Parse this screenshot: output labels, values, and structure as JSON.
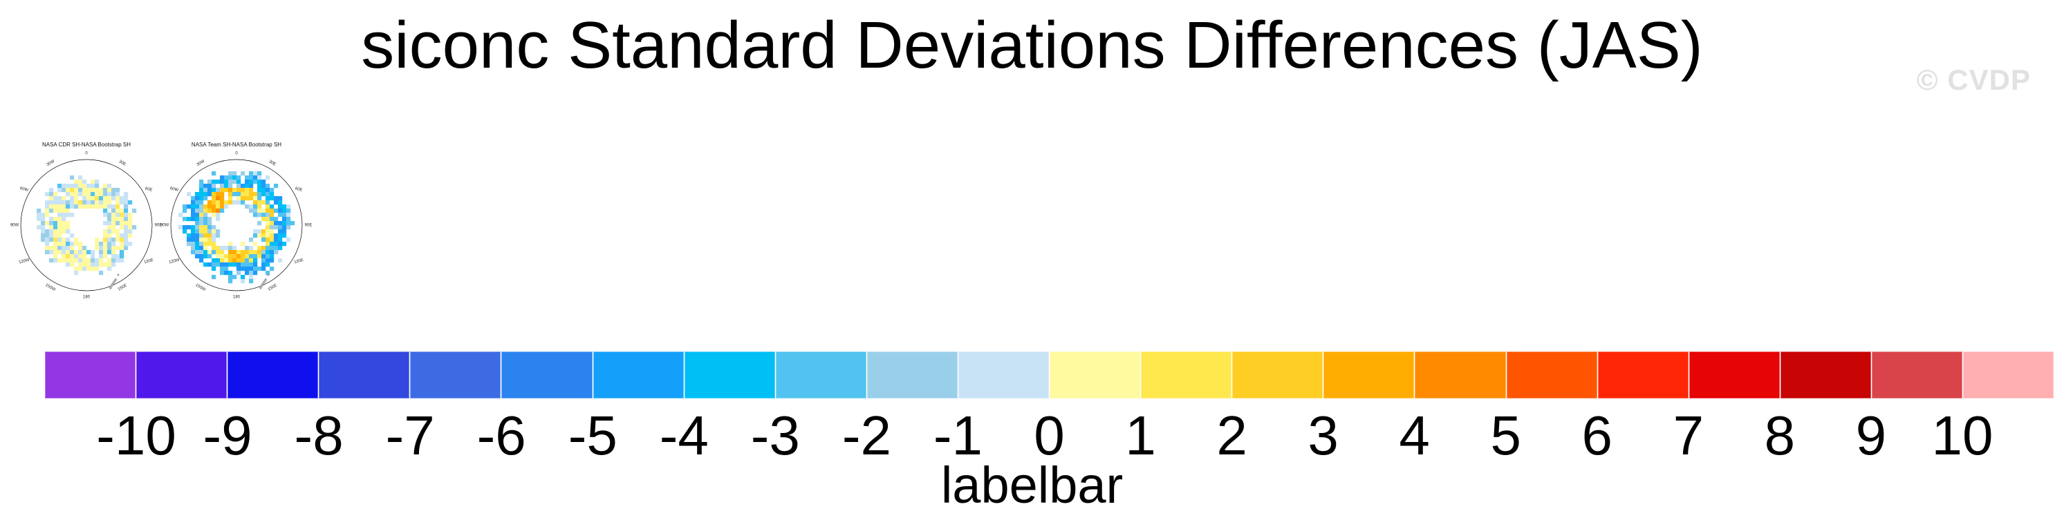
{
  "page_title": "siconc Standard Deviations Differences (JAS)",
  "watermark": "© CVDP",
  "maps": [
    {
      "title": "NASA CDR SH-NASA Bootstrap SH",
      "lon_labels": [
        {
          "text": "0",
          "angle": 0,
          "tilt": 0
        },
        {
          "text": "30E",
          "angle": 30,
          "tilt": 30
        },
        {
          "text": "60E",
          "angle": 60,
          "tilt": 15
        },
        {
          "text": "90E",
          "angle": 90,
          "tilt": 0
        },
        {
          "text": "120E",
          "angle": 120,
          "tilt": -15
        },
        {
          "text": "150E",
          "angle": 150,
          "tilt": -30
        },
        {
          "text": "180",
          "angle": 180,
          "tilt": 0
        },
        {
          "text": "150W",
          "angle": 210,
          "tilt": 30
        },
        {
          "text": "120W",
          "angle": 240,
          "tilt": -15
        },
        {
          "text": "90W",
          "angle": 270,
          "tilt": 0
        },
        {
          "text": "60W",
          "angle": 300,
          "tilt": 15
        },
        {
          "text": "30W",
          "angle": 330,
          "tilt": -30
        }
      ],
      "ring": {
        "seed": 7,
        "cell": 6,
        "bands": [
          {
            "r0": 30,
            "r1": 66,
            "p": 0.9,
            "colors": [
              [
                "#FFF9A0",
                0.5
              ],
              [
                "#C9E3F6",
                0.28
              ],
              [
                "#9ACFEA",
                0.14
              ],
              [
                "#52C3F0",
                0.05
              ],
              [
                "#FFE74E",
                0.03
              ]
            ]
          },
          {
            "r0": 66,
            "r1": 74,
            "p": 0.35,
            "colors": [
              [
                "#C9E3F6",
                0.55
              ],
              [
                "#9ACFEA",
                0.35
              ],
              [
                "#52C3F0",
                0.1
              ]
            ]
          },
          {
            "r0": 24,
            "r1": 30,
            "p": 0.55,
            "colors": [
              [
                "#FFF9A0",
                0.65
              ],
              [
                "#C9E3F6",
                0.35
              ]
            ]
          }
        ]
      }
    },
    {
      "title": "NASA Team SH-NASA Bootstrap SH",
      "lon_labels": [
        {
          "text": "0",
          "angle": 0,
          "tilt": 0
        },
        {
          "text": "30E",
          "angle": 30,
          "tilt": 30
        },
        {
          "text": "60E",
          "angle": 60,
          "tilt": 15
        },
        {
          "text": "90E",
          "angle": 90,
          "tilt": 0
        },
        {
          "text": "120E",
          "angle": 120,
          "tilt": -15
        },
        {
          "text": "150E",
          "angle": 150,
          "tilt": -30
        },
        {
          "text": "180",
          "angle": 180,
          "tilt": 0
        },
        {
          "text": "150W",
          "angle": 210,
          "tilt": 30
        },
        {
          "text": "120W",
          "angle": 240,
          "tilt": -15
        },
        {
          "text": "90W",
          "angle": 270,
          "tilt": 0
        },
        {
          "text": "60W",
          "angle": 300,
          "tilt": 15
        },
        {
          "text": "30W",
          "angle": 330,
          "tilt": -30
        }
      ],
      "ring": {
        "seed": 13,
        "cell": 6,
        "bands": [
          {
            "r0": 34,
            "r1": 54,
            "a0": 297,
            "a1": 352,
            "p": 0.95,
            "colors": [
              [
                "#FFAC00",
                0.4
              ],
              [
                "#FF8A00",
                0.28
              ],
              [
                "#FFCE24",
                0.22
              ],
              [
                "#FFE74E",
                0.1
              ]
            ]
          },
          {
            "r0": 36,
            "r1": 52,
            "a0": 160,
            "a1": 200,
            "p": 0.9,
            "colors": [
              [
                "#FFAC00",
                0.45
              ],
              [
                "#FFCE24",
                0.3
              ],
              [
                "#FFE74E",
                0.25
              ]
            ]
          },
          {
            "r0": 56,
            "r1": 76,
            "p": 0.85,
            "colors": [
              [
                "#1E9BFA",
                0.32
              ],
              [
                "#00BFF5",
                0.28
              ],
              [
                "#52C3F0",
                0.26
              ],
              [
                "#9ACFEA",
                0.14
              ]
            ]
          },
          {
            "r0": 40,
            "r1": 56,
            "p": 0.92,
            "colors": [
              [
                "#FFE74E",
                0.38
              ],
              [
                "#FFCE24",
                0.22
              ],
              [
                "#52C3F0",
                0.16
              ],
              [
                "#9ACFEA",
                0.12
              ],
              [
                "#FFF9A0",
                0.12
              ]
            ]
          },
          {
            "r0": 28,
            "r1": 40,
            "p": 0.6,
            "colors": [
              [
                "#C9E3F6",
                0.35
              ],
              [
                "#9ACFEA",
                0.3
              ],
              [
                "#FFF9A0",
                0.2
              ],
              [
                "#52C3F0",
                0.15
              ]
            ]
          },
          {
            "r0": 76,
            "r1": 84,
            "p": 0.2,
            "colors": [
              [
                "#52C3F0",
                0.5
              ],
              [
                "#C9E3F6",
                0.5
              ]
            ]
          }
        ]
      }
    }
  ],
  "labelbar": {
    "title": "labelbar",
    "tick_values": [
      -10,
      -9,
      -8,
      -7,
      -6,
      -5,
      -4,
      -3,
      -2,
      -1,
      0,
      1,
      2,
      3,
      4,
      5,
      6,
      7,
      8,
      9,
      10
    ],
    "cell_colors": [
      "#9336E4",
      "#5018EA",
      "#100FEE",
      "#3248DE",
      "#3D6BE4",
      "#2B83F0",
      "#14A0FA",
      "#00BFF5",
      "#52C3F0",
      "#9ACFEA",
      "#C9E3F6",
      "#FFF9A0",
      "#FFE74E",
      "#FFCE24",
      "#FFAC00",
      "#FF8A00",
      "#FF5500",
      "#FF2606",
      "#E60404",
      "#C80404",
      "#D8444A",
      "#FFAEB2"
    ]
  },
  "chart_data": {
    "type": "heatmap",
    "title": "siconc Standard Deviations Differences (JAS)",
    "variable": "siconc",
    "season": "JAS",
    "projection": "south polar stereographic",
    "legend_position": "bottom",
    "panels": [
      {
        "title": "NASA CDR SH-NASA Bootstrap SH",
        "summary": "Weak differences around Antarctica: ring of mostly -2 to +1 (pale yellow with scattered light blue cells)."
      },
      {
        "title": "NASA Team SH-NASA Bootstrap SH",
        "summary": "Stronger differences: outer ring of -5 to -2 (blues), inner ring of +1 to +5 (yellow/orange) with orange maxima northwest of the Antarctic Peninsula and near the Ross Sea."
      }
    ],
    "colorbar": {
      "label": "labelbar",
      "orientation": "horizontal",
      "n_cells": 22,
      "tick_values": [
        -10,
        -9,
        -8,
        -7,
        -6,
        -5,
        -4,
        -3,
        -2,
        -1,
        0,
        1,
        2,
        3,
        4,
        5,
        6,
        7,
        8,
        9,
        10
      ],
      "cell_colors": [
        "#9336E4",
        "#5018EA",
        "#100FEE",
        "#3248DE",
        "#3D6BE4",
        "#2B83F0",
        "#14A0FA",
        "#00BFF5",
        "#52C3F0",
        "#9ACFEA",
        "#C9E3F6",
        "#FFF9A0",
        "#FFE74E",
        "#FFCE24",
        "#FFAC00",
        "#FF8A00",
        "#FF5500",
        "#FF2606",
        "#E60404",
        "#C80404",
        "#D8444A",
        "#FFAEB2"
      ]
    }
  }
}
